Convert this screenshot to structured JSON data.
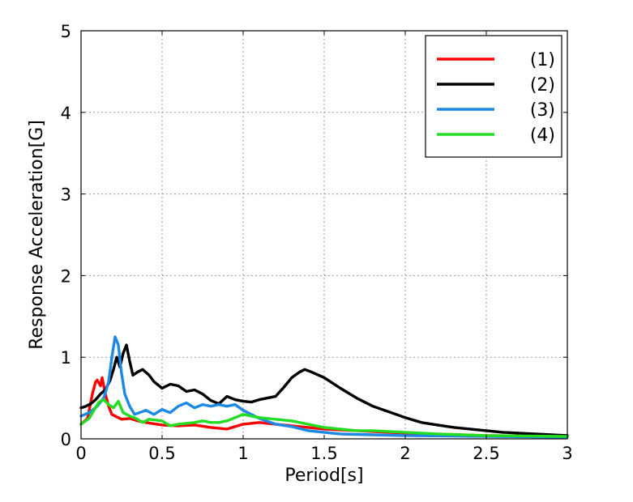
{
  "chart_data": {
    "type": "line",
    "title": "",
    "xlabel": "Period[s]",
    "ylabel": "Response Acceleration[G]",
    "xlim": [
      0,
      3
    ],
    "ylim": [
      0,
      5
    ],
    "xticks": [
      "0",
      "0.5",
      "1",
      "1.5",
      "2",
      "2.5",
      "3"
    ],
    "yticks": [
      "0",
      "1",
      "2",
      "3",
      "4",
      "5"
    ],
    "grid": true,
    "legend_position": "top-right",
    "colors": {
      "(1)": "#ff0000",
      "(2)": "#000000",
      "(3)": "#1e88e5",
      "(4)": "#22dd22"
    },
    "series": [
      {
        "name": "(1)",
        "x": [
          0.0,
          0.04,
          0.07,
          0.09,
          0.1,
          0.12,
          0.13,
          0.15,
          0.17,
          0.19,
          0.22,
          0.25,
          0.3,
          0.35,
          0.4,
          0.5,
          0.6,
          0.7,
          0.8,
          0.9,
          1.0,
          1.1,
          1.2,
          1.3,
          1.4,
          1.5,
          1.7,
          2.0,
          2.5,
          3.0
        ],
        "y": [
          0.18,
          0.25,
          0.55,
          0.7,
          0.72,
          0.65,
          0.75,
          0.55,
          0.4,
          0.3,
          0.27,
          0.24,
          0.25,
          0.22,
          0.2,
          0.17,
          0.16,
          0.17,
          0.14,
          0.12,
          0.18,
          0.2,
          0.18,
          0.16,
          0.14,
          0.12,
          0.1,
          0.07,
          0.04,
          0.03
        ]
      },
      {
        "name": "(2)",
        "x": [
          0.0,
          0.03,
          0.06,
          0.09,
          0.12,
          0.15,
          0.18,
          0.2,
          0.22,
          0.24,
          0.26,
          0.28,
          0.3,
          0.32,
          0.35,
          0.38,
          0.42,
          0.45,
          0.5,
          0.55,
          0.6,
          0.65,
          0.7,
          0.75,
          0.8,
          0.85,
          0.9,
          0.95,
          1.0,
          1.05,
          1.1,
          1.15,
          1.2,
          1.25,
          1.3,
          1.35,
          1.38,
          1.42,
          1.5,
          1.6,
          1.7,
          1.8,
          1.9,
          2.0,
          2.1,
          2.2,
          2.3,
          2.4,
          2.5,
          2.6,
          2.7,
          2.8,
          2.9,
          3.0
        ],
        "y": [
          0.38,
          0.4,
          0.43,
          0.48,
          0.55,
          0.6,
          0.72,
          0.85,
          1.0,
          0.88,
          1.05,
          1.15,
          0.95,
          0.78,
          0.82,
          0.85,
          0.78,
          0.7,
          0.62,
          0.67,
          0.65,
          0.58,
          0.6,
          0.55,
          0.47,
          0.43,
          0.52,
          0.48,
          0.46,
          0.45,
          0.48,
          0.5,
          0.52,
          0.63,
          0.75,
          0.82,
          0.85,
          0.82,
          0.75,
          0.62,
          0.5,
          0.4,
          0.33,
          0.26,
          0.2,
          0.17,
          0.14,
          0.12,
          0.1,
          0.08,
          0.07,
          0.06,
          0.05,
          0.04
        ]
      },
      {
        "name": "(3)",
        "x": [
          0.0,
          0.05,
          0.1,
          0.14,
          0.17,
          0.19,
          0.21,
          0.23,
          0.25,
          0.27,
          0.3,
          0.33,
          0.36,
          0.4,
          0.45,
          0.5,
          0.55,
          0.6,
          0.65,
          0.7,
          0.75,
          0.8,
          0.85,
          0.9,
          0.95,
          1.0,
          1.05,
          1.1,
          1.2,
          1.3,
          1.4,
          1.6,
          1.8,
          2.0,
          2.5,
          3.0
        ],
        "y": [
          0.28,
          0.32,
          0.4,
          0.5,
          0.7,
          1.0,
          1.25,
          1.15,
          0.8,
          0.55,
          0.4,
          0.3,
          0.32,
          0.35,
          0.3,
          0.36,
          0.32,
          0.4,
          0.44,
          0.38,
          0.42,
          0.4,
          0.42,
          0.4,
          0.42,
          0.35,
          0.3,
          0.25,
          0.18,
          0.15,
          0.1,
          0.06,
          0.05,
          0.04,
          0.03,
          0.02
        ]
      },
      {
        "name": "(4)",
        "x": [
          0.0,
          0.05,
          0.08,
          0.11,
          0.14,
          0.17,
          0.2,
          0.23,
          0.26,
          0.3,
          0.34,
          0.38,
          0.42,
          0.5,
          0.55,
          0.6,
          0.7,
          0.75,
          0.8,
          0.85,
          0.9,
          0.95,
          1.0,
          1.05,
          1.1,
          1.2,
          1.3,
          1.4,
          1.5,
          1.6,
          1.7,
          1.8,
          1.9,
          2.0,
          2.2,
          2.5,
          3.0
        ],
        "y": [
          0.18,
          0.25,
          0.35,
          0.45,
          0.48,
          0.42,
          0.38,
          0.46,
          0.32,
          0.28,
          0.25,
          0.2,
          0.24,
          0.22,
          0.16,
          0.18,
          0.2,
          0.22,
          0.2,
          0.2,
          0.22,
          0.26,
          0.3,
          0.28,
          0.26,
          0.24,
          0.22,
          0.18,
          0.14,
          0.12,
          0.1,
          0.1,
          0.09,
          0.08,
          0.06,
          0.04,
          0.03
        ]
      }
    ]
  }
}
